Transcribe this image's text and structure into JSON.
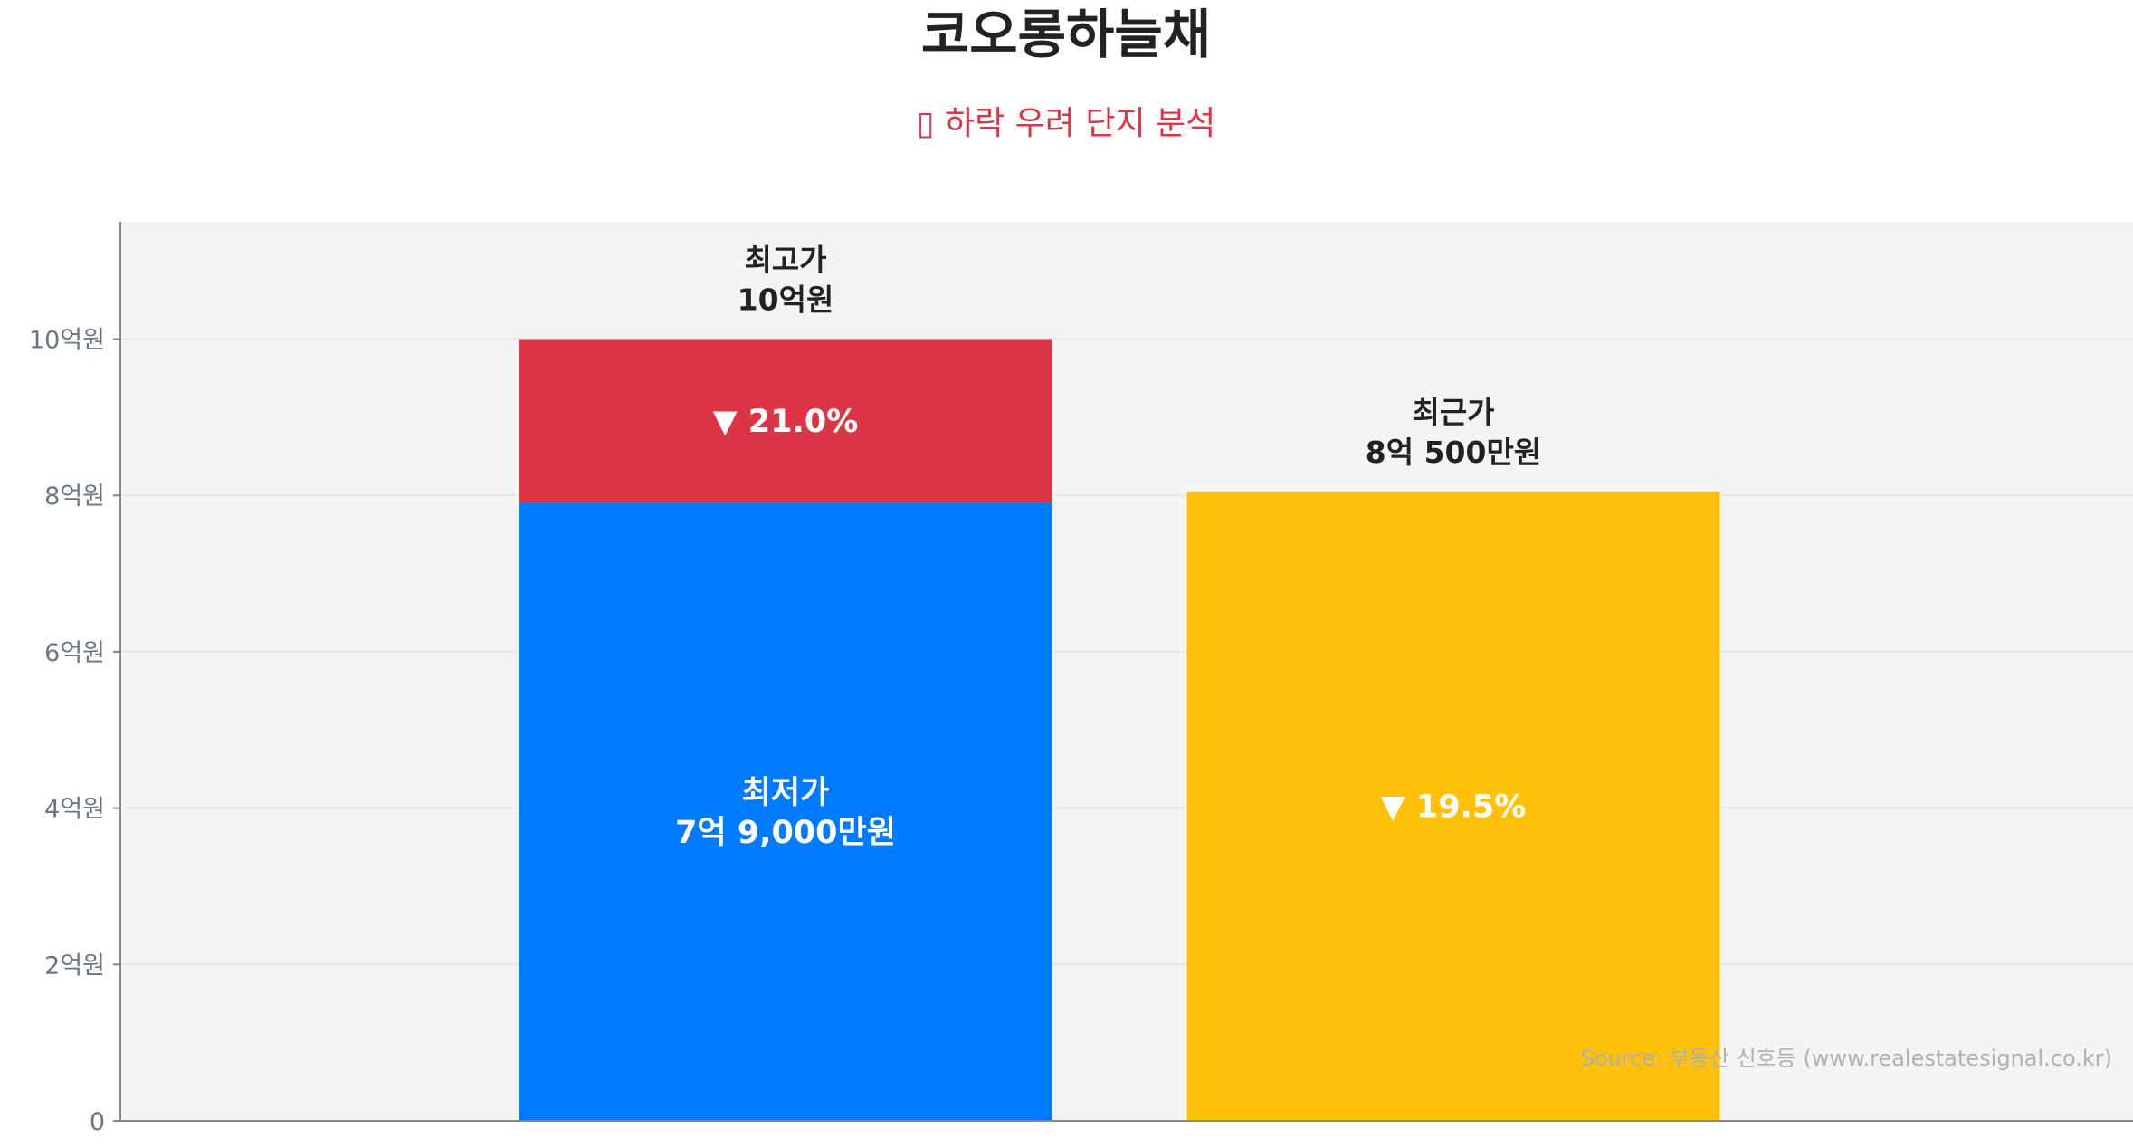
{
  "chart_data": {
    "type": "bar",
    "title": "코오롱하늘채",
    "subtitle": "▯ 하락 우려 단지 분석",
    "xlabel": "",
    "ylabel": "",
    "ylim": [
      0,
      11.5
    ],
    "y_ticks": [
      {
        "value": 0,
        "label": "0"
      },
      {
        "value": 2,
        "label": "2억원"
      },
      {
        "value": 4,
        "label": "4억원"
      },
      {
        "value": 6,
        "label": "6억원"
      },
      {
        "value": 8,
        "label": "8억원"
      },
      {
        "value": 10,
        "label": "10억원"
      }
    ],
    "grid": true,
    "bars": [
      {
        "position": 1,
        "segments": [
          {
            "from": 0,
            "to": 7.9,
            "color": "#007bff",
            "label": [
              "최저가",
              "7억 9,000만원"
            ]
          },
          {
            "from": 7.9,
            "to": 10.0,
            "color": "#dc3545",
            "label": [
              "▼ 21.0%"
            ]
          }
        ],
        "top_label": [
          "최고가",
          "10억원"
        ]
      },
      {
        "position": 2,
        "segments": [
          {
            "from": 0,
            "to": 8.05,
            "color": "#ffc107",
            "label": [
              "▼ 19.5%"
            ]
          }
        ],
        "top_label": [
          "최근가",
          "8억 500만원"
        ]
      }
    ],
    "source": "Source: 부동산 신호등 (www.realestatesignal.co.kr)",
    "colors": {
      "low": "#007bff",
      "drop": "#dc3545",
      "recent": "#ffc107",
      "plot_bg": "#f4f4f4",
      "grid": "#e6e6e6",
      "axis": "#888888"
    }
  }
}
